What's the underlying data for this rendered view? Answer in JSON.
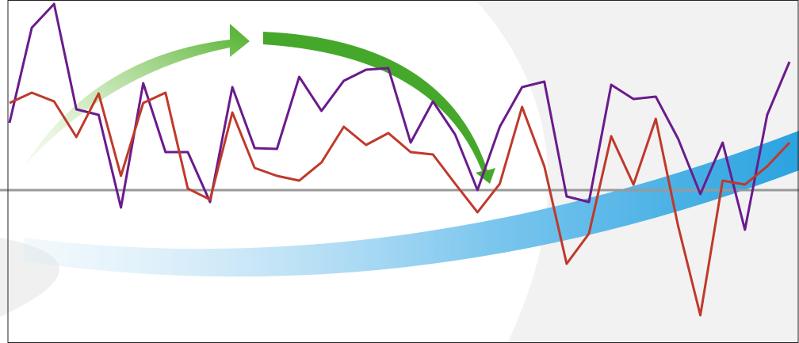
{
  "chart_data": {
    "type": "line",
    "categories": [
      null,
      null,
      null,
      null,
      null,
      null,
      null,
      null,
      null,
      null,
      null,
      null,
      null,
      null,
      null,
      null,
      null,
      null,
      null,
      null,
      null,
      null,
      null,
      null,
      null,
      null,
      null,
      null,
      null,
      null,
      null,
      null,
      null,
      null,
      null,
      null
    ],
    "series": [
      {
        "color": "#6a1b8c",
        "values": [
          8.5,
          20.5,
          23.5,
          10.2,
          9.5,
          -2.2,
          13.5,
          4.8,
          4.8,
          -1.5,
          13,
          5.3,
          5.2,
          14.3,
          10,
          13.8,
          15.2,
          15.4,
          6,
          11.2,
          7,
          0,
          8,
          13,
          13.7,
          -0.8,
          -1.5,
          13.3,
          11.5,
          11.8,
          6.5,
          -0.5,
          6,
          -5,
          9.5,
          16.2
        ]
      },
      {
        "color": "#c0392b",
        "values": [
          11,
          12.3,
          11.2,
          6.7,
          12.2,
          1.8,
          11,
          12.3,
          0.2,
          -1.2,
          9.8,
          2.8,
          1.8,
          1.2,
          3.5,
          8,
          5.7,
          7.2,
          4.8,
          4.5,
          0.8,
          -2.8,
          0.8,
          10.5,
          3,
          -9.3,
          -5.5,
          6.8,
          0.7,
          9,
          -4.5,
          -15.8,
          1.2,
          0.7,
          3,
          6
        ]
      }
    ],
    "ylim": [
      -19.3,
      24
    ]
  }
}
